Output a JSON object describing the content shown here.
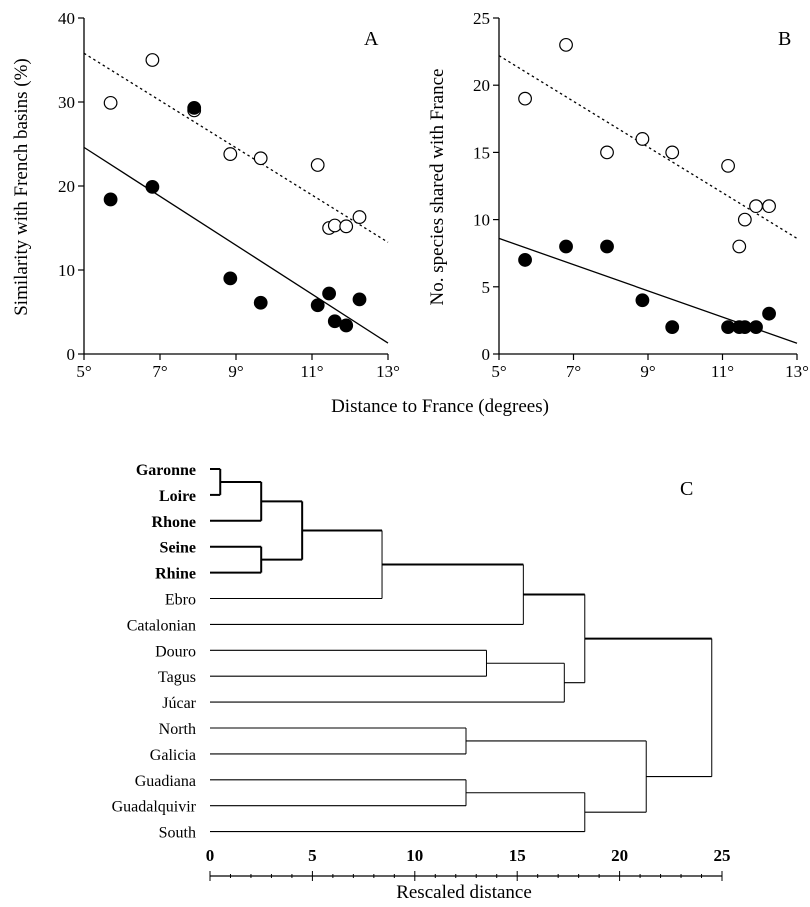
{
  "chart_data": [
    {
      "type": "scatter",
      "panel_label": "A",
      "ylabel": "Similarity with French basins (%)",
      "xlabel": "Distance to France (degrees)",
      "xlim": [
        5,
        13
      ],
      "ylim": [
        0,
        40
      ],
      "x_ticks": [
        5,
        7,
        9,
        11,
        13
      ],
      "x_tick_labels": [
        "5°",
        "7°",
        "9°",
        "11°",
        "13°"
      ],
      "y_ticks": [
        0,
        10,
        20,
        30,
        40
      ],
      "y_tick_labels": [
        "0",
        "10",
        "20",
        "30",
        "40"
      ],
      "series": [
        {
          "marker": "open-circle",
          "line": "dotted",
          "fit": [
            [
              5,
              35.8
            ],
            [
              13,
              13.3
            ]
          ],
          "points": [
            [
              5.7,
              29.9
            ],
            [
              6.8,
              35.0
            ],
            [
              7.9,
              29.0
            ],
            [
              8.85,
              23.8
            ],
            [
              9.65,
              23.3
            ],
            [
              11.15,
              22.5
            ],
            [
              11.45,
              15.0
            ],
            [
              11.6,
              15.3
            ],
            [
              11.9,
              15.2
            ],
            [
              12.25,
              16.3
            ]
          ]
        },
        {
          "marker": "filled-circle",
          "line": "solid",
          "fit": [
            [
              5,
              24.6
            ],
            [
              13,
              1.3
            ]
          ],
          "points": [
            [
              5.7,
              18.4
            ],
            [
              6.8,
              19.9
            ],
            [
              7.9,
              29.3
            ],
            [
              8.85,
              9.0
            ],
            [
              9.65,
              6.1
            ],
            [
              11.15,
              5.8
            ],
            [
              11.45,
              7.2
            ],
            [
              11.6,
              3.9
            ],
            [
              11.9,
              3.4
            ],
            [
              12.25,
              6.5
            ]
          ]
        }
      ]
    },
    {
      "type": "scatter",
      "panel_label": "B",
      "ylabel": "No. species shared with France",
      "xlabel": "Distance to France (degrees)",
      "xlim": [
        5,
        13
      ],
      "ylim": [
        0,
        25
      ],
      "x_ticks": [
        5,
        7,
        9,
        11,
        13
      ],
      "x_tick_labels": [
        "5°",
        "7°",
        "9°",
        "11°",
        "13°"
      ],
      "y_ticks": [
        0,
        5,
        10,
        15,
        20,
        25
      ],
      "y_tick_labels": [
        "0",
        "5",
        "10",
        "15",
        "20",
        "25"
      ],
      "series": [
        {
          "marker": "open-circle",
          "line": "dotted",
          "fit": [
            [
              5,
              22.2
            ],
            [
              13,
              8.6
            ]
          ],
          "points": [
            [
              5.7,
              19.0
            ],
            [
              6.8,
              23.0
            ],
            [
              7.9,
              15.0
            ],
            [
              8.85,
              16.0
            ],
            [
              9.65,
              15.0
            ],
            [
              11.15,
              14.0
            ],
            [
              11.45,
              8.0
            ],
            [
              11.6,
              10.0
            ],
            [
              11.9,
              11.0
            ],
            [
              12.25,
              11.0
            ]
          ]
        },
        {
          "marker": "filled-circle",
          "line": "solid",
          "fit": [
            [
              5,
              8.6
            ],
            [
              13,
              0.8
            ]
          ],
          "points": [
            [
              5.7,
              7.0
            ],
            [
              6.8,
              8.0
            ],
            [
              7.9,
              8.0
            ],
            [
              8.85,
              4.0
            ],
            [
              9.65,
              2.0
            ],
            [
              11.15,
              2.0
            ],
            [
              11.45,
              2.0
            ],
            [
              11.6,
              2.0
            ],
            [
              11.9,
              2.0
            ],
            [
              12.25,
              3.0
            ]
          ]
        }
      ]
    },
    {
      "type": "dendrogram",
      "panel_label": "C",
      "xlabel": "Rescaled distance",
      "xlim": [
        0,
        25
      ],
      "x_ticks": [
        0,
        5,
        10,
        15,
        20,
        25
      ],
      "x_tick_labels": [
        "0",
        "5",
        "10",
        "15",
        "20",
        "25"
      ],
      "leaves": [
        {
          "label": "Garonne",
          "bold": true
        },
        {
          "label": "Loire",
          "bold": true
        },
        {
          "label": "Rhone",
          "bold": true
        },
        {
          "label": "Seine",
          "bold": true
        },
        {
          "label": "Rhine",
          "bold": true
        },
        {
          "label": "Ebro",
          "bold": false
        },
        {
          "label": "Catalonian",
          "bold": false
        },
        {
          "label": "Douro",
          "bold": false
        },
        {
          "label": "Tagus",
          "bold": false
        },
        {
          "label": "Júcar",
          "bold": false
        },
        {
          "label": "North",
          "bold": false
        },
        {
          "label": "Galicia",
          "bold": false
        },
        {
          "label": "Guadiana",
          "bold": false
        },
        {
          "label": "Guadalquivir",
          "bold": false
        },
        {
          "label": "South",
          "bold": false
        }
      ],
      "merges": [
        {
          "a": 0,
          "b": 1,
          "h": 0.5
        },
        {
          "a": 15,
          "b": 2,
          "h": 2.5
        },
        {
          "a": 3,
          "b": 4,
          "h": 2.5
        },
        {
          "a": 16,
          "b": 17,
          "h": 4.5
        },
        {
          "a": 18,
          "b": 5,
          "h": 8.4
        },
        {
          "a": 19,
          "b": 6,
          "h": 15.3
        },
        {
          "a": 7,
          "b": 8,
          "h": 13.5
        },
        {
          "a": 21,
          "b": 9,
          "h": 17.3
        },
        {
          "a": 20,
          "b": 22,
          "h": 18.3
        },
        {
          "a": 10,
          "b": 11,
          "h": 12.5
        },
        {
          "a": 12,
          "b": 13,
          "h": 12.5
        },
        {
          "a": 25,
          "b": 14,
          "h": 18.3
        },
        {
          "a": 24,
          "b": 26,
          "h": 21.3
        },
        {
          "a": 23,
          "b": 27,
          "h": 24.5
        }
      ]
    }
  ]
}
